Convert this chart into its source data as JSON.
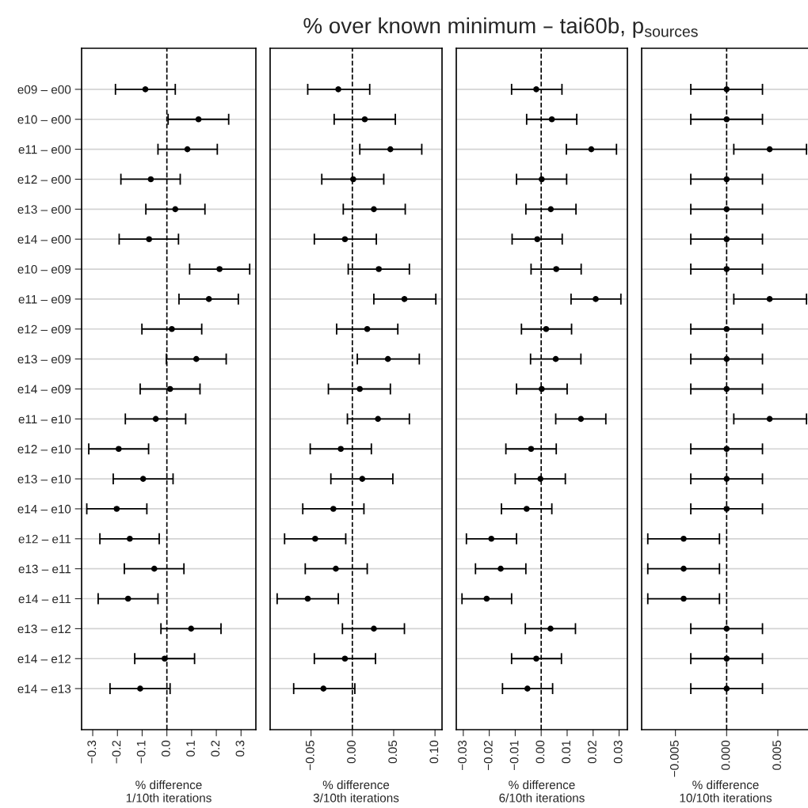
{
  "chart_data": [
    {
      "type": "scatter",
      "orientation": "horizontal",
      "xlabel": "% difference\n1/10th iterations",
      "color": "#000000",
      "marker": "circle",
      "grid": "y",
      "categories": [
        "e09 – e00",
        "e10 – e00",
        "e11 – e00",
        "e12 – e00",
        "e13 – e00",
        "e14 – e00",
        "e10 – e09",
        "e11 – e09",
        "e12 – e09",
        "e13 – e09",
        "e14 – e09",
        "e11 – e10",
        "e12 – e10",
        "e13 – e10",
        "e14 – e10",
        "e12 – e11",
        "e13 – e11",
        "e14 – e11",
        "e13 – e12",
        "e14 – e12",
        "e14 – e13"
      ],
      "values": [
        -0.087,
        0.128,
        0.083,
        -0.065,
        0.034,
        -0.072,
        0.213,
        0.17,
        0.02,
        0.119,
        0.013,
        -0.045,
        -0.195,
        -0.096,
        -0.203,
        -0.15,
        -0.051,
        -0.157,
        0.098,
        -0.009,
        -0.108
      ],
      "errors": [
        [
          -0.208,
          0.034
        ],
        [
          0.005,
          0.25
        ],
        [
          -0.036,
          0.204
        ],
        [
          -0.186,
          0.054
        ],
        [
          -0.085,
          0.154
        ],
        [
          -0.193,
          0.047
        ],
        [
          0.092,
          0.335
        ],
        [
          0.049,
          0.289
        ],
        [
          -0.101,
          0.141
        ],
        [
          -0.002,
          0.24
        ],
        [
          -0.108,
          0.134
        ],
        [
          -0.168,
          0.076
        ],
        [
          -0.316,
          -0.074
        ],
        [
          -0.217,
          0.025
        ],
        [
          -0.324,
          -0.081
        ],
        [
          -0.271,
          -0.031
        ],
        [
          -0.172,
          0.069
        ],
        [
          -0.278,
          -0.036
        ],
        [
          -0.024,
          0.219
        ],
        [
          -0.13,
          0.112
        ],
        [
          -0.23,
          0.013
        ]
      ],
      "xlim": [
        -0.345,
        0.36
      ],
      "xticks": [
        {
          "value": -0.3,
          "label": "−0.3"
        },
        {
          "value": -0.2,
          "label": "−0.2"
        },
        {
          "value": -0.1,
          "label": "−0.1"
        },
        {
          "value": 0,
          "label": "0.0"
        },
        {
          "value": 0.1,
          "label": "0.1"
        },
        {
          "value": 0.2,
          "label": "0.2"
        },
        {
          "value": 0.3,
          "label": "0.3"
        }
      ],
      "ref_lines": [
        {
          "axis": "x",
          "value": 0,
          "color": "#000000",
          "line_style": "dashed"
        }
      ]
    },
    {
      "type": "scatter",
      "orientation": "horizontal",
      "xlabel": "% difference\n3/10th iterations",
      "color": "#000000",
      "marker": "circle",
      "grid": "y",
      "tick_labels": "x",
      "categories": [
        null,
        null,
        null,
        null,
        null,
        null,
        null,
        null,
        null,
        null,
        null,
        null,
        null,
        null,
        null,
        null,
        null,
        null,
        null,
        null,
        null
      ],
      "values": [
        -0.017,
        0.015,
        0.046,
        0.001,
        0.026,
        -0.009,
        0.032,
        0.063,
        0.018,
        0.043,
        0.009,
        0.031,
        -0.014,
        0.012,
        -0.023,
        -0.045,
        -0.02,
        -0.054,
        0.026,
        -0.009,
        -0.035
      ],
      "errors": [
        [
          -0.054,
          0.021
        ],
        [
          -0.022,
          0.052
        ],
        [
          0.009,
          0.084
        ],
        [
          -0.037,
          0.038
        ],
        [
          -0.011,
          0.064
        ],
        [
          -0.046,
          0.029
        ],
        [
          -0.005,
          0.069
        ],
        [
          0.026,
          0.101
        ],
        [
          -0.019,
          0.055
        ],
        [
          0.006,
          0.081
        ],
        [
          -0.029,
          0.046
        ],
        [
          -0.006,
          0.069
        ],
        [
          -0.051,
          0.023
        ],
        [
          -0.026,
          0.049
        ],
        [
          -0.06,
          0.014
        ],
        [
          -0.082,
          -0.008
        ],
        [
          -0.057,
          0.018
        ],
        [
          -0.091,
          -0.017
        ],
        [
          -0.012,
          0.063
        ],
        [
          -0.046,
          0.028
        ],
        [
          -0.071,
          0.003
        ]
      ],
      "xlim": [
        -0.0995,
        0.1085
      ],
      "xticks": [
        {
          "value": -0.05,
          "label": "−0.05"
        },
        {
          "value": 0,
          "label": "0.00"
        },
        {
          "value": 0.05,
          "label": "0.05"
        },
        {
          "value": 0.1,
          "label": "0.10"
        }
      ],
      "ref_lines": [
        {
          "axis": "x",
          "value": 0,
          "color": "#000000",
          "line_style": "dashed"
        }
      ]
    },
    {
      "type": "scatter",
      "orientation": "horizontal",
      "title": "% over known minimum – tai60b, p$_{sources}$",
      "xlabel": "% difference\n6/10th iterations",
      "color": "#000000",
      "marker": "circle",
      "grid": "y",
      "tick_labels": "x",
      "categories": [
        null,
        null,
        null,
        null,
        null,
        null,
        null,
        null,
        null,
        null,
        null,
        null,
        null,
        null,
        null,
        null,
        null,
        null,
        null,
        null,
        null
      ],
      "values": [
        -0.0019,
        0.0041,
        0.0193,
        0.0002,
        0.0037,
        -0.0015,
        0.0058,
        0.021,
        0.0019,
        0.0056,
        0.0002,
        0.0153,
        -0.0039,
        -0.0003,
        -0.0056,
        -0.0192,
        -0.0156,
        -0.021,
        0.0036,
        -0.0019,
        -0.0053
      ],
      "errors": [
        [
          -0.0114,
          0.008
        ],
        [
          -0.0056,
          0.0137
        ],
        [
          0.0097,
          0.029
        ],
        [
          -0.0095,
          0.0098
        ],
        [
          -0.0059,
          0.0134
        ],
        [
          -0.0112,
          0.0081
        ],
        [
          -0.0039,
          0.0154
        ],
        [
          0.0115,
          0.0307
        ],
        [
          -0.0076,
          0.0117
        ],
        [
          -0.0041,
          0.0153
        ],
        [
          -0.0095,
          0.01
        ],
        [
          0.0056,
          0.0249
        ],
        [
          -0.0136,
          0.0058
        ],
        [
          -0.01,
          0.0093
        ],
        [
          -0.0153,
          0.0041
        ],
        [
          -0.0288,
          -0.0095
        ],
        [
          -0.0253,
          -0.0059
        ],
        [
          -0.0305,
          -0.0114
        ],
        [
          -0.0061,
          0.0132
        ],
        [
          -0.0114,
          0.0078
        ],
        [
          -0.0149,
          0.0044
        ]
      ],
      "xlim": [
        -0.0327,
        0.0332
      ],
      "xticks": [
        {
          "value": -0.03,
          "label": "−0.03"
        },
        {
          "value": -0.02,
          "label": "−0.02"
        },
        {
          "value": -0.01,
          "label": "−0.01"
        },
        {
          "value": 0,
          "label": "0.00"
        },
        {
          "value": 0.01,
          "label": "0.01"
        },
        {
          "value": 0.02,
          "label": "0.02"
        },
        {
          "value": 0.03,
          "label": "0.03"
        }
      ],
      "ref_lines": [
        {
          "axis": "x",
          "value": 0,
          "color": "#000000",
          "line_style": "dashed"
        }
      ]
    },
    {
      "type": "scatter",
      "orientation": "horizontal",
      "xlabel": "% difference\n10/10th iterations",
      "color": "#000000",
      "marker": "circle",
      "grid": "y",
      "tick_labels": "x",
      "categories": [
        null,
        null,
        null,
        null,
        null,
        null,
        null,
        null,
        null,
        null,
        null,
        null,
        null,
        null,
        null,
        null,
        null,
        null,
        null,
        null,
        null
      ],
      "values": [
        0,
        0,
        0.0042,
        0,
        0,
        0,
        0,
        0.0042,
        0,
        0,
        0,
        0.0042,
        0,
        0,
        0,
        -0.0042,
        -0.0042,
        -0.0042,
        0,
        0,
        0
      ],
      "errors": [
        [
          -0.0035,
          0.0035
        ],
        [
          -0.0035,
          0.0035
        ],
        [
          0.0007,
          0.0078
        ],
        [
          -0.0035,
          0.0035
        ],
        [
          -0.0035,
          0.0035
        ],
        [
          -0.0035,
          0.0035
        ],
        [
          -0.0035,
          0.0035
        ],
        [
          0.0007,
          0.0078
        ],
        [
          -0.0035,
          0.0035
        ],
        [
          -0.0035,
          0.0035
        ],
        [
          -0.0035,
          0.0035
        ],
        [
          0.0007,
          0.0078
        ],
        [
          -0.0035,
          0.0035
        ],
        [
          -0.0035,
          0.0035
        ],
        [
          -0.0035,
          0.0035
        ],
        [
          -0.0077,
          -0.0007
        ],
        [
          -0.0077,
          -0.0007
        ],
        [
          -0.0077,
          -0.0007
        ],
        [
          -0.0035,
          0.0035
        ],
        [
          -0.0035,
          0.0035
        ],
        [
          -0.0035,
          0.0035
        ]
      ],
      "xlim": [
        -0.0083,
        0.0081
      ],
      "xticks": [
        {
          "value": -0.005,
          "label": "−0.005"
        },
        {
          "value": 0,
          "label": "0.000"
        },
        {
          "value": 0.005,
          "label": "0.005"
        }
      ],
      "ref_lines": [
        {
          "axis": "x",
          "value": 0,
          "color": "#000000",
          "line_style": "dashed"
        }
      ]
    }
  ]
}
